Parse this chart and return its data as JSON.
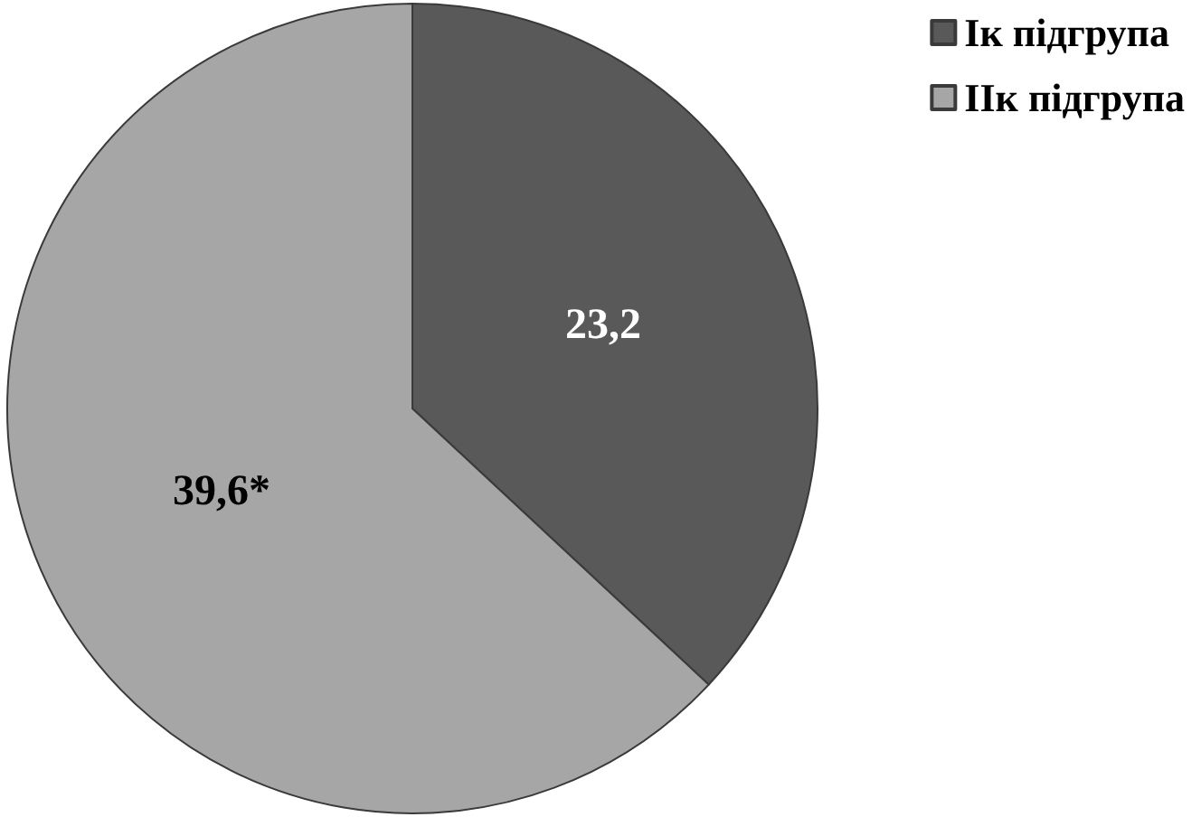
{
  "chart_data": {
    "type": "pie",
    "categories": [
      "Ік підгрупа",
      "ІІк підгрупа"
    ],
    "values": [
      23.2,
      39.6
    ],
    "colors": [
      "#595959",
      "#a6a6a6"
    ],
    "value_labels": [
      "23,2",
      "39,6*"
    ],
    "legend": "top right"
  }
}
